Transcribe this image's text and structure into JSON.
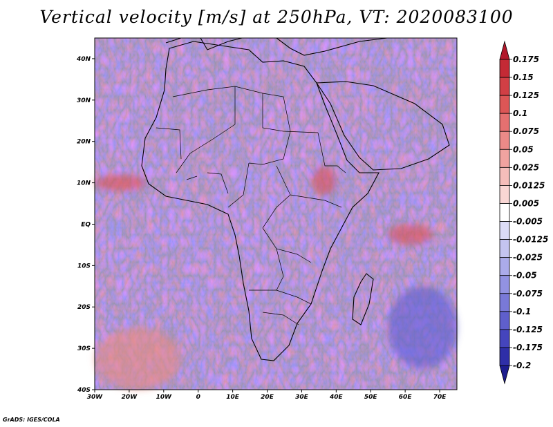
{
  "title": "Vertical velocity [m/s] at 250hPa, VT: 2020083100",
  "credit": "GrADS: IGES/COLA",
  "chart_data": {
    "type": "heatmap",
    "projection": "latlon",
    "field": "vertical velocity",
    "units": "m/s",
    "level": "250hPa",
    "valid_time": "2020083100",
    "xlim": [
      -30,
      75
    ],
    "ylim": [
      -40,
      45
    ],
    "x_ticks": [
      {
        "value": -30,
        "label": "30W"
      },
      {
        "value": -20,
        "label": "20W"
      },
      {
        "value": -10,
        "label": "10W"
      },
      {
        "value": 0,
        "label": "0"
      },
      {
        "value": 10,
        "label": "10E"
      },
      {
        "value": 20,
        "label": "20E"
      },
      {
        "value": 30,
        "label": "30E"
      },
      {
        "value": 40,
        "label": "40E"
      },
      {
        "value": 50,
        "label": "50E"
      },
      {
        "value": 60,
        "label": "60E"
      },
      {
        "value": 70,
        "label": "70E"
      }
    ],
    "y_ticks": [
      {
        "value": 40,
        "label": "40N"
      },
      {
        "value": 30,
        "label": "30N"
      },
      {
        "value": 20,
        "label": "20N"
      },
      {
        "value": 10,
        "label": "10N"
      },
      {
        "value": 0,
        "label": "EQ"
      },
      {
        "value": -10,
        "label": "10S"
      },
      {
        "value": -20,
        "label": "20S"
      },
      {
        "value": -30,
        "label": "30S"
      },
      {
        "value": -40,
        "label": "40S"
      }
    ],
    "colorbar": {
      "orientation": "vertical",
      "placement": "right",
      "levels": [
        "0.175",
        "0.15",
        "0.125",
        "0.1",
        "0.075",
        "0.05",
        "0.025",
        "0.0125",
        "0.005",
        "-0.005",
        "-0.0125",
        "-0.025",
        "-0.05",
        "-0.075",
        "-0.1",
        "-0.125",
        "-0.175",
        "-0.2"
      ],
      "colors": [
        "#b2182b",
        "#c42a35",
        "#d13f45",
        "#dc5656",
        "#e57070",
        "#ec8a88",
        "#f1a3a0",
        "#f5bdba",
        "#f9d6d4",
        "#ffffff",
        "#dcdcf7",
        "#c4c4f0",
        "#ababea",
        "#9292e2",
        "#7979d8",
        "#5f5fcc",
        "#4545bd",
        "#2f2fa8",
        "#1d1d8f"
      ]
    },
    "features": [
      {
        "name": "ITCZ upward band (west Africa)",
        "lon": [
          -30,
          -15
        ],
        "lat": [
          8,
          12
        ],
        "sign": "positive"
      },
      {
        "name": "Ethiopian highlands upward",
        "lon": [
          33,
          40
        ],
        "lat": [
          7,
          14
        ],
        "sign": "positive"
      },
      {
        "name": "Indian Ocean upward patch",
        "lon": [
          55,
          68
        ],
        "lat": [
          -5,
          0
        ],
        "sign": "positive"
      },
      {
        "name": "South Atlantic storm-track",
        "lon": [
          -30,
          -5
        ],
        "lat": [
          -40,
          -25
        ],
        "sign": "mixed"
      },
      {
        "name": "Southern Indian Ocean descent",
        "lon": [
          55,
          75
        ],
        "lat": [
          -35,
          -15
        ],
        "sign": "negative"
      }
    ]
  }
}
